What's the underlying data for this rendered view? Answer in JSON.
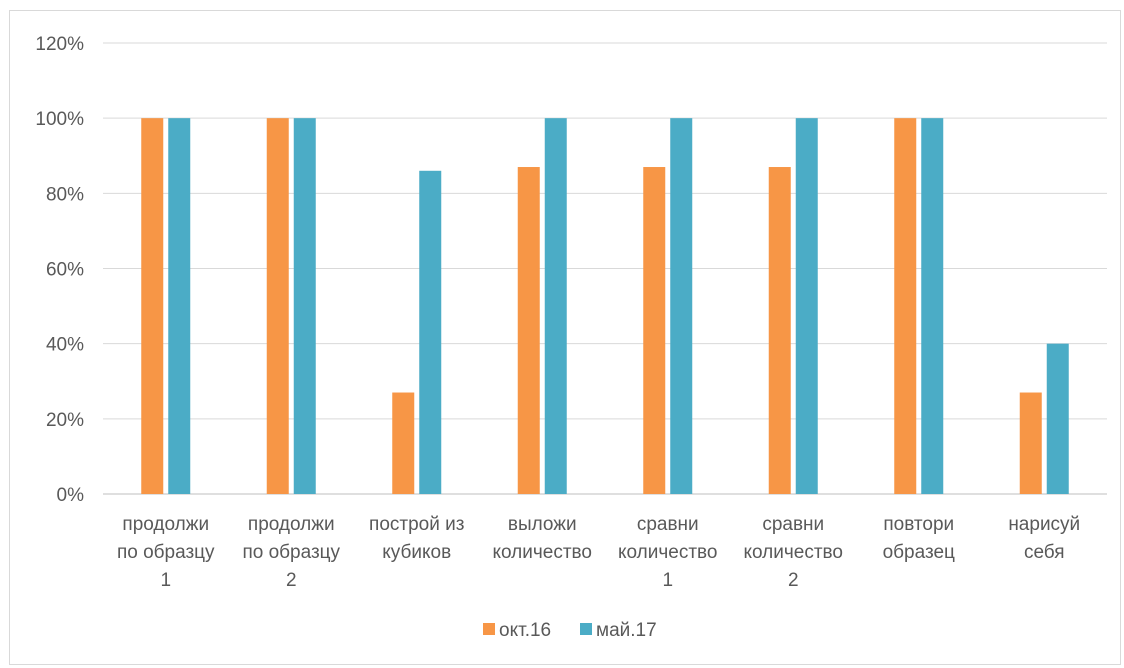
{
  "chart_data": {
    "type": "bar",
    "categories": [
      [
        "продолжи",
        "по образцу",
        "1"
      ],
      [
        "продолжи",
        "по образцу",
        "2"
      ],
      [
        "построй из",
        "кубиков"
      ],
      [
        "выложи",
        "количество"
      ],
      [
        "сравни",
        "количество",
        "1"
      ],
      [
        "сравни",
        "количество",
        "2"
      ],
      [
        "повтори",
        "образец"
      ],
      [
        "нарисуй",
        "себя"
      ]
    ],
    "series": [
      {
        "name": "окт.16",
        "color": "#F79646",
        "values": [
          100,
          100,
          27,
          87,
          87,
          87,
          100,
          27
        ]
      },
      {
        "name": "май.17",
        "color": "#4BACC6",
        "values": [
          100,
          100,
          86,
          100,
          100,
          100,
          100,
          40
        ]
      }
    ],
    "ylim": [
      0,
      120
    ],
    "yticks": [
      "0%",
      "20%",
      "40%",
      "60%",
      "80%",
      "100%",
      "120%"
    ],
    "grid": true,
    "legend_position": "bottom",
    "title": "",
    "xlabel": "",
    "ylabel": ""
  }
}
